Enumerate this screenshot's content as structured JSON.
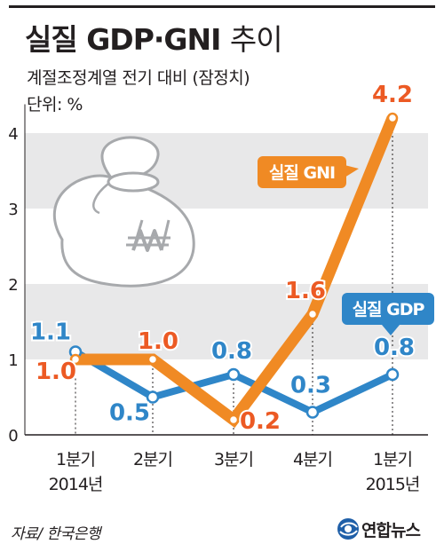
{
  "header": {
    "title_bold": "실질 GDP·GNI",
    "title_light": "추이",
    "subtitle": "계절조정계열 전기 대비 (잠정치)",
    "unit": "단위: %"
  },
  "chart_data": {
    "type": "line",
    "categories": [
      "1분기 2014년",
      "2분기",
      "3분기",
      "4분기",
      "1분기 2015년"
    ],
    "x_tick_labels": [
      [
        "1분기",
        "2014년"
      ],
      [
        "2분기",
        ""
      ],
      [
        "3분기",
        ""
      ],
      [
        "4분기",
        ""
      ],
      [
        "1분기",
        "2015년"
      ]
    ],
    "series": [
      {
        "name": "실질 GNI",
        "values": [
          1.0,
          1.0,
          0.2,
          1.6,
          4.2
        ],
        "labels": [
          "1.0",
          "1.0",
          "0.2",
          "1.6",
          "4.2"
        ],
        "color": "#f08a24",
        "label_color": "#ec5a24"
      },
      {
        "name": "실질 GDP",
        "values": [
          1.1,
          0.5,
          0.8,
          0.3,
          0.8
        ],
        "labels": [
          "1.1",
          "0.5",
          "0.8",
          "0.3",
          "0.8"
        ],
        "color": "#2f86c8",
        "label_color": "#2f86c8"
      }
    ],
    "ylim": [
      0,
      4.5
    ],
    "yticks": [
      0,
      1,
      2,
      3,
      4
    ],
    "ytick_labels": [
      "0",
      "1",
      "2",
      "3",
      "4"
    ],
    "grid": "alternating horizontal bands",
    "legend": "callout labels on lines"
  },
  "footer": {
    "source": "자료/ 한국은행",
    "logo_text": "연합뉴스"
  },
  "colors": {
    "gni": "#f08a24",
    "gdp": "#2f86c8",
    "band": "#e8e8e9",
    "text": "#231f20"
  }
}
